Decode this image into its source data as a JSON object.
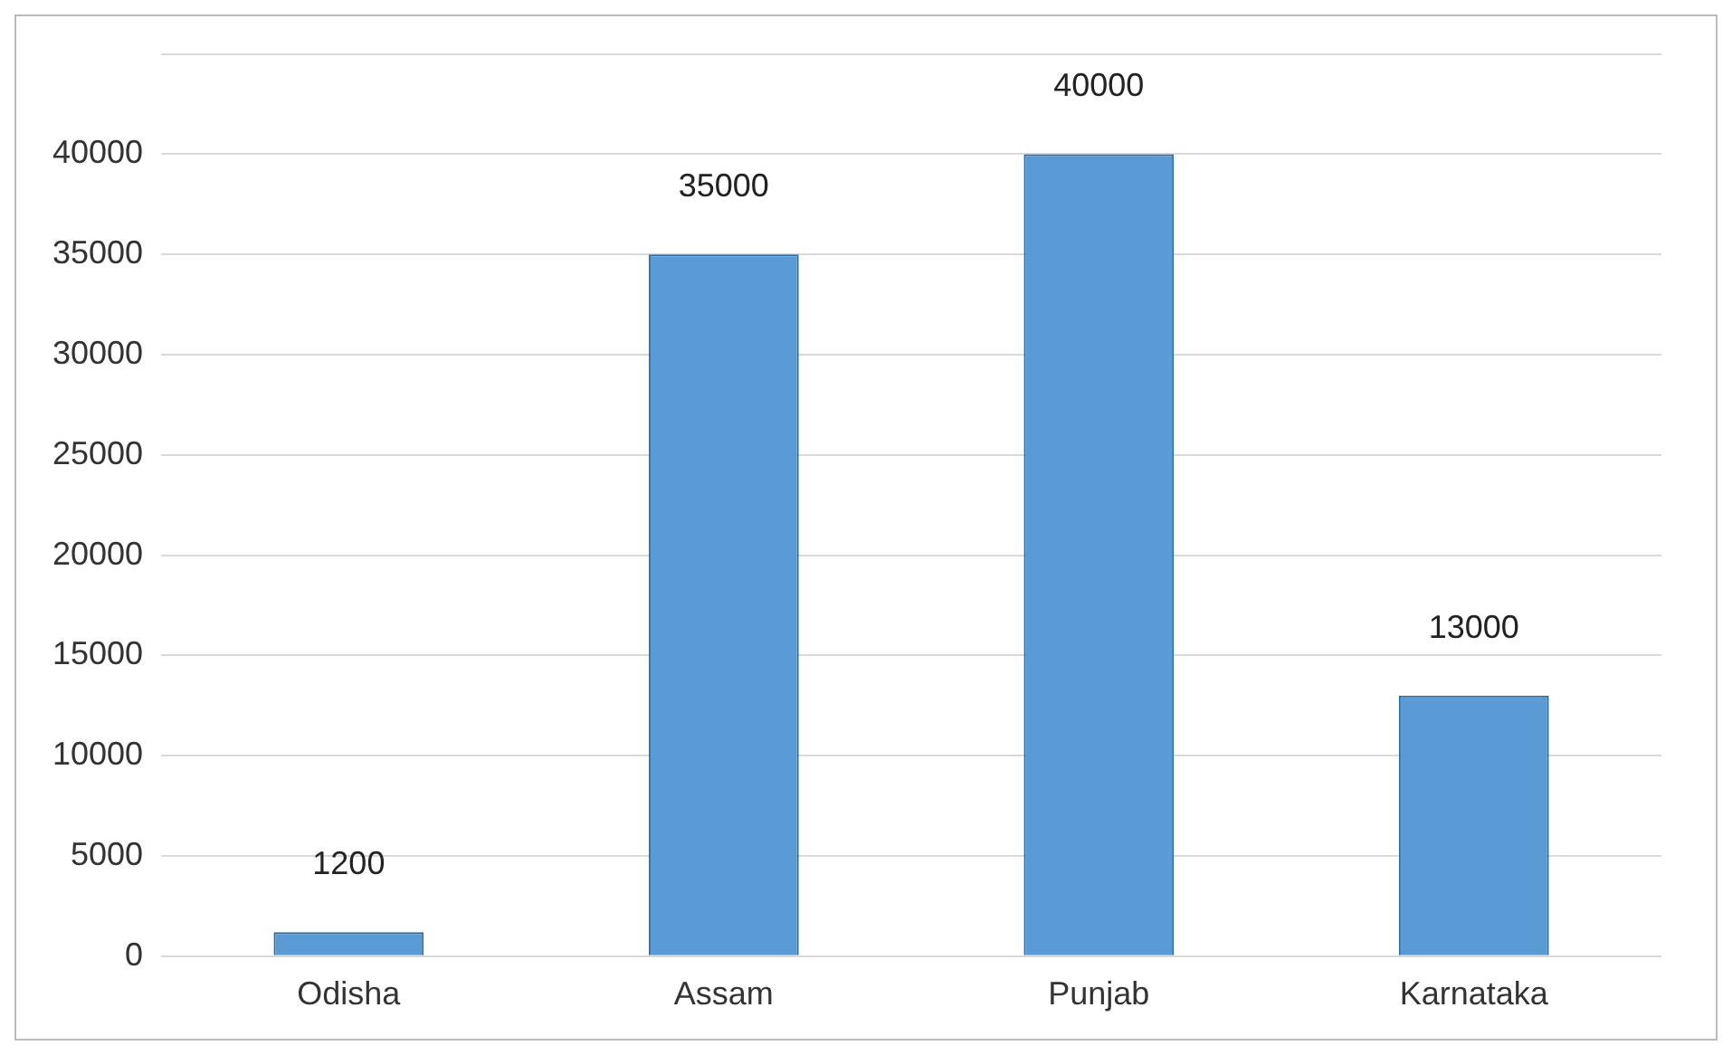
{
  "chart_data": {
    "type": "bar",
    "categories": [
      "Odisha",
      "Assam",
      "Punjab",
      "Karnataka"
    ],
    "values": [
      1200,
      35000,
      40000,
      13000
    ],
    "color": "#5b9bd5",
    "ylim": [
      0,
      45000
    ],
    "yticks": [
      0,
      5000,
      10000,
      15000,
      20000,
      25000,
      30000,
      35000,
      40000,
      {
        "value": 45000,
        "label": null
      }
    ],
    "grid": "y",
    "data_labels": true,
    "legend": false
  }
}
